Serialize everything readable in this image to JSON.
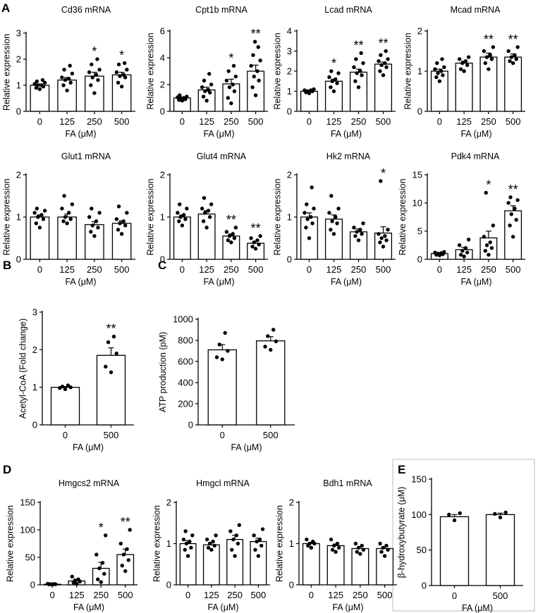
{
  "panels": {
    "A": "A",
    "B": "B",
    "C": "C",
    "D": "D",
    "E": "E"
  },
  "chart_data": [
    {
      "panel": "A",
      "type": "bar",
      "title": "Cd36 mRNA",
      "xlabel": "FA (μM)",
      "ylabel": "Relative expression",
      "categories": [
        "0",
        "125",
        "250",
        "500"
      ],
      "values": [
        1.0,
        1.2,
        1.35,
        1.4
      ],
      "errors": [
        0.05,
        0.1,
        0.15,
        0.1
      ],
      "significance": [
        "",
        "",
        "*",
        "*"
      ],
      "ylim": [
        0,
        3
      ],
      "yticks": [
        0,
        1,
        2,
        3
      ],
      "points": [
        [
          0.85,
          0.9,
          0.95,
          1.0,
          1.0,
          1.05,
          1.1,
          1.15,
          1.2
        ],
        [
          0.8,
          1.0,
          1.1,
          1.2,
          1.25,
          1.3,
          1.45,
          1.6,
          1.75
        ],
        [
          0.7,
          1.0,
          1.2,
          1.3,
          1.4,
          1.5,
          1.6,
          1.8,
          2.0
        ],
        [
          0.95,
          1.1,
          1.3,
          1.35,
          1.4,
          1.5,
          1.6,
          1.8,
          1.85
        ]
      ]
    },
    {
      "panel": "A",
      "type": "bar",
      "title": "Cpt1b mRNA",
      "xlabel": "FA (μM)",
      "ylabel": "Relative expression",
      "categories": [
        "0",
        "125",
        "250",
        "500"
      ],
      "values": [
        1.0,
        1.6,
        2.05,
        3.0
      ],
      "errors": [
        0.05,
        0.2,
        0.35,
        0.45
      ],
      "significance": [
        "",
        "",
        "*",
        "**"
      ],
      "ylim": [
        0,
        6
      ],
      "yticks": [
        0,
        2,
        4,
        6
      ],
      "points": [
        [
          0.8,
          0.85,
          0.9,
          1.0,
          1.0,
          1.05,
          1.1,
          1.2
        ],
        [
          0.8,
          1.1,
          1.4,
          1.5,
          1.6,
          1.8,
          2.0,
          2.3,
          2.8
        ],
        [
          0.6,
          1.0,
          1.5,
          1.8,
          2.0,
          2.3,
          2.6,
          3.0,
          3.4
        ],
        [
          1.2,
          1.8,
          2.3,
          2.6,
          3.0,
          3.4,
          3.8,
          4.2,
          4.8,
          5.2
        ]
      ]
    },
    {
      "panel": "A",
      "type": "bar",
      "title": "Lcad mRNA",
      "xlabel": "FA (μM)",
      "ylabel": "Relative expression",
      "categories": [
        "0",
        "125",
        "250",
        "500"
      ],
      "values": [
        1.0,
        1.5,
        1.95,
        2.35
      ],
      "errors": [
        0.03,
        0.1,
        0.15,
        0.1
      ],
      "significance": [
        "",
        "*",
        "**",
        "**"
      ],
      "ylim": [
        0,
        4
      ],
      "yticks": [
        0,
        1,
        2,
        3,
        4
      ],
      "points": [
        [
          0.9,
          0.95,
          1.0,
          1.0,
          1.05,
          1.05,
          1.1
        ],
        [
          1.0,
          1.2,
          1.4,
          1.5,
          1.6,
          1.7,
          1.9,
          2.0
        ],
        [
          1.2,
          1.5,
          1.8,
          1.9,
          2.0,
          2.2,
          2.4,
          2.6,
          2.9
        ],
        [
          1.8,
          2.0,
          2.2,
          2.3,
          2.4,
          2.5,
          2.6,
          2.8,
          3.0
        ]
      ]
    },
    {
      "panel": "A",
      "type": "bar",
      "title": "Mcad mRNA",
      "xlabel": "FA (μM)",
      "ylabel": "Relative expression",
      "categories": [
        "0",
        "125",
        "250",
        "500"
      ],
      "values": [
        1.0,
        1.2,
        1.35,
        1.35
      ],
      "errors": [
        0.05,
        0.05,
        0.1,
        0.08
      ],
      "significance": [
        "",
        "",
        "**",
        "**"
      ],
      "ylim": [
        0,
        2
      ],
      "yticks": [
        0,
        1,
        2
      ],
      "points": [
        [
          0.75,
          0.85,
          0.9,
          0.95,
          1.0,
          1.05,
          1.1,
          1.2,
          1.3
        ],
        [
          1.0,
          1.05,
          1.15,
          1.2,
          1.25,
          1.3,
          1.35
        ],
        [
          1.05,
          1.2,
          1.3,
          1.35,
          1.4,
          1.5,
          1.6
        ],
        [
          1.2,
          1.25,
          1.3,
          1.35,
          1.4,
          1.5,
          1.6
        ]
      ]
    },
    {
      "panel": "A",
      "type": "bar",
      "title": "Glut1 mRNA",
      "xlabel": "FA (μM)",
      "ylabel": "Relative expression",
      "categories": [
        "0",
        "125",
        "250",
        "500"
      ],
      "values": [
        1.0,
        1.0,
        0.82,
        0.85
      ],
      "errors": [
        0.05,
        0.07,
        0.07,
        0.06
      ],
      "significance": [
        "",
        "",
        "",
        ""
      ],
      "ylim": [
        0,
        2
      ],
      "yticks": [
        0,
        1,
        2
      ],
      "points": [
        [
          0.75,
          0.85,
          0.95,
          1.0,
          1.05,
          1.1,
          1.15,
          1.2
        ],
        [
          0.85,
          0.9,
          0.95,
          1.0,
          1.1,
          1.2,
          1.3,
          1.5
        ],
        [
          0.55,
          0.65,
          0.75,
          0.8,
          0.9,
          1.0,
          1.1,
          1.2
        ],
        [
          0.6,
          0.7,
          0.8,
          0.85,
          0.9,
          0.95,
          1.1,
          1.25
        ]
      ]
    },
    {
      "panel": "A",
      "type": "bar",
      "title": "Glut4 mRNA",
      "xlabel": "FA (μM)",
      "ylabel": "Relative expression",
      "categories": [
        "0",
        "125",
        "250",
        "500"
      ],
      "values": [
        1.0,
        1.07,
        0.55,
        0.38
      ],
      "errors": [
        0.05,
        0.08,
        0.05,
        0.05
      ],
      "significance": [
        "",
        "",
        "**",
        "**"
      ],
      "ylim": [
        0,
        2
      ],
      "yticks": [
        0,
        1,
        2
      ],
      "points": [
        [
          0.8,
          0.9,
          0.95,
          1.0,
          1.05,
          1.1,
          1.2,
          1.3
        ],
        [
          0.75,
          0.9,
          1.0,
          1.1,
          1.15,
          1.2,
          1.3,
          1.45
        ],
        [
          0.4,
          0.45,
          0.5,
          0.55,
          0.6,
          0.65,
          0.75
        ],
        [
          0.25,
          0.3,
          0.35,
          0.4,
          0.45,
          0.5,
          0.55
        ]
      ]
    },
    {
      "panel": "A",
      "type": "bar",
      "title": "Hk2 mRNA",
      "xlabel": "FA (μM)",
      "ylabel": "Relative expression",
      "categories": [
        "0",
        "125",
        "250",
        "500"
      ],
      "values": [
        1.0,
        0.95,
        0.65,
        0.62
      ],
      "errors": [
        0.1,
        0.1,
        0.07,
        0.15
      ],
      "significance": [
        "",
        "",
        "",
        "*"
      ],
      "ylim": [
        0,
        2
      ],
      "yticks": [
        0,
        1,
        2
      ],
      "points": [
        [
          0.5,
          0.75,
          0.85,
          0.95,
          1.0,
          1.1,
          1.2,
          1.3,
          1.7
        ],
        [
          0.6,
          0.7,
          0.85,
          0.9,
          1.0,
          1.1,
          1.2,
          1.5
        ],
        [
          0.45,
          0.55,
          0.6,
          0.65,
          0.7,
          0.75,
          0.85
        ],
        [
          0.3,
          0.4,
          0.45,
          0.5,
          0.55,
          0.6,
          0.7,
          1.85
        ]
      ]
    },
    {
      "panel": "A",
      "type": "bar",
      "title": "Pdk4 mRNA",
      "xlabel": "FA (μM)",
      "ylabel": "Relative expression",
      "categories": [
        "0",
        "125",
        "250",
        "500"
      ],
      "values": [
        1.0,
        1.7,
        3.8,
        8.6
      ],
      "errors": [
        0.1,
        0.4,
        1.2,
        0.9
      ],
      "significance": [
        "",
        "",
        "*",
        "**"
      ],
      "ylim": [
        0,
        15
      ],
      "yticks": [
        0,
        5,
        10,
        15
      ],
      "points": [
        [
          0.7,
          0.8,
          0.9,
          1.0,
          1.1,
          1.2,
          1.3
        ],
        [
          0.5,
          0.8,
          1.2,
          1.5,
          2.0,
          2.5,
          3.5
        ],
        [
          0.8,
          1.5,
          2.0,
          2.5,
          3.0,
          4.0,
          6.0,
          11.8
        ],
        [
          4.0,
          6.0,
          7.0,
          8.0,
          9.0,
          10.0,
          10.5,
          11.0
        ]
      ]
    },
    {
      "panel": "B",
      "type": "bar",
      "title": "",
      "xlabel": "FA (μM)",
      "ylabel": "Acetyl-CoA (Fold change)",
      "categories": [
        "0",
        "500"
      ],
      "values": [
        1.0,
        1.85
      ],
      "errors": [
        0.02,
        0.2
      ],
      "significance": [
        "",
        "**"
      ],
      "ylim": [
        0,
        3
      ],
      "yticks": [
        0,
        1,
        2,
        3
      ],
      "points": [
        [
          0.95,
          0.98,
          1.0,
          1.02,
          1.05
        ],
        [
          1.4,
          1.55,
          1.9,
          2.2,
          2.35
        ]
      ]
    },
    {
      "panel": "C",
      "type": "bar",
      "title": "",
      "xlabel": "FA (μM)",
      "ylabel": "ATP production (pM)",
      "categories": [
        "0",
        "500"
      ],
      "values": [
        710,
        795
      ],
      "errors": [
        50,
        40
      ],
      "significance": [
        "",
        ""
      ],
      "ylim": [
        0,
        1000
      ],
      "yticks": [
        0,
        200,
        400,
        600,
        800,
        1000
      ],
      "points": [
        [
          620,
          640,
          700,
          760,
          870
        ],
        [
          710,
          740,
          790,
          840,
          900
        ]
      ]
    },
    {
      "panel": "D",
      "type": "bar",
      "title": "Hmgcs2 mRNA",
      "xlabel": "FA (μM)",
      "ylabel": "Relative expression",
      "categories": [
        "0",
        "125",
        "250",
        "500"
      ],
      "values": [
        1.0,
        7.0,
        30.0,
        55.0
      ],
      "errors": [
        0.5,
        3.0,
        11.0,
        10.0
      ],
      "significance": [
        "",
        "",
        "*",
        "**"
      ],
      "ylim": [
        0,
        150
      ],
      "yticks": [
        0,
        50,
        100,
        150
      ],
      "points": [
        [
          0.5,
          0.8,
          1.0,
          1.2,
          1.5,
          2.0
        ],
        [
          2,
          4,
          6,
          8,
          10,
          15
        ],
        [
          5,
          10,
          20,
          30,
          40,
          55,
          90
        ],
        [
          25,
          35,
          45,
          55,
          65,
          75,
          100
        ]
      ]
    },
    {
      "panel": "D",
      "type": "bar",
      "title": "Hmgcl mRNA",
      "xlabel": "FA (μM)",
      "ylabel": "Relative expression",
      "categories": [
        "0",
        "125",
        "250",
        "500"
      ],
      "values": [
        1.0,
        0.97,
        1.1,
        1.05
      ],
      "errors": [
        0.07,
        0.05,
        0.1,
        0.08
      ],
      "significance": [
        "",
        "",
        "",
        ""
      ],
      "ylim": [
        0,
        2
      ],
      "yticks": [
        0,
        1,
        2
      ],
      "points": [
        [
          0.7,
          0.85,
          0.9,
          1.0,
          1.05,
          1.1,
          1.2,
          1.3
        ],
        [
          0.85,
          0.9,
          0.95,
          1.0,
          1.05,
          1.1,
          1.2
        ],
        [
          0.7,
          0.85,
          1.0,
          1.1,
          1.2,
          1.3,
          1.45
        ],
        [
          0.7,
          0.85,
          0.95,
          1.05,
          1.1,
          1.2,
          1.35
        ]
      ]
    },
    {
      "panel": "D",
      "type": "bar",
      "title": "Bdh1 mRNA",
      "xlabel": "FA (μM)",
      "ylabel": "Relative expression",
      "categories": [
        "0",
        "125",
        "250",
        "500"
      ],
      "values": [
        1.0,
        0.95,
        0.88,
        0.88
      ],
      "errors": [
        0.03,
        0.04,
        0.04,
        0.04
      ],
      "significance": [
        "",
        "",
        "",
        ""
      ],
      "ylim": [
        0,
        2
      ],
      "yticks": [
        0,
        1,
        2
      ],
      "points": [
        [
          0.9,
          0.95,
          1.0,
          1.0,
          1.05,
          1.1
        ],
        [
          0.8,
          0.85,
          0.9,
          0.95,
          1.0,
          1.1
        ],
        [
          0.75,
          0.8,
          0.85,
          0.9,
          0.95,
          1.0
        ],
        [
          0.7,
          0.8,
          0.85,
          0.9,
          0.95,
          1.0
        ]
      ]
    },
    {
      "panel": "E",
      "type": "bar",
      "title": "",
      "xlabel": "FA (μM)",
      "ylabel": "β-hydroxybutyrate (μM)",
      "categories": [
        "0",
        "500"
      ],
      "values": [
        97,
        100
      ],
      "errors": [
        3,
        2
      ],
      "significance": [
        "",
        ""
      ],
      "ylim": [
        0,
        150
      ],
      "yticks": [
        0,
        50,
        100,
        150
      ],
      "points": [
        [
          92,
          100,
          102
        ],
        [
          96,
          101,
          103
        ]
      ]
    }
  ]
}
